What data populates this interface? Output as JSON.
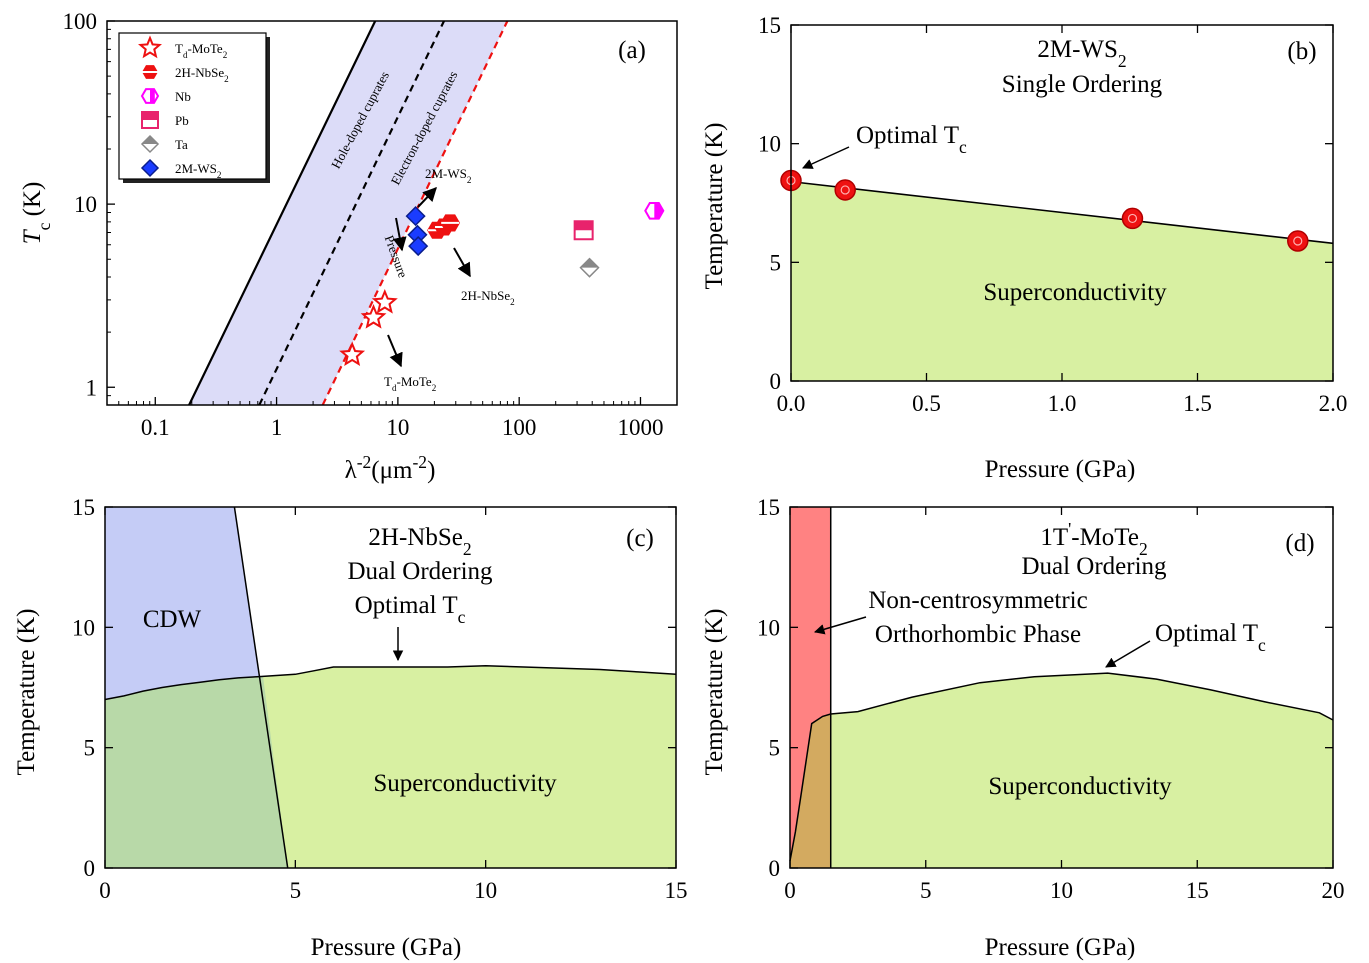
{
  "chart_data": [
    {
      "panel": "(a)",
      "type": "scatter",
      "xlabel": "λ⁻²(μm⁻²)",
      "ylabel": "Tc (K)",
      "xscale": "log",
      "yscale": "log",
      "xlim": [
        0.04,
        2000
      ],
      "ylim": [
        0.8,
        100
      ],
      "xticks": [
        "0.1",
        "1",
        "10",
        "100",
        "1000"
      ],
      "yticks": [
        "1",
        "10",
        "100"
      ],
      "legend_position": "top-left",
      "series": [
        {
          "name": "Td-MoTe2",
          "label_main": "T",
          "label_sub": "d",
          "label_rest": "-MoTe",
          "label_sub2": "2",
          "marker": "star",
          "color": "#ee1111",
          "points": [
            [
              4.2,
              1.5
            ],
            [
              6.3,
              2.4
            ],
            [
              7.8,
              2.9
            ]
          ]
        },
        {
          "name": "2H-NbSe2",
          "label_main": "2H-NbSe",
          "label_sub": "2",
          "marker": "hexagon",
          "color": "#ee1111",
          "points": [
            [
              21,
              7.2
            ],
            [
              24,
              7.5
            ],
            [
              27,
              7.9
            ]
          ]
        },
        {
          "name": "Nb",
          "label_main": "Nb",
          "marker": "hexagon-half",
          "color": "#ff00ff",
          "points": [
            [
              1300,
              9.2
            ]
          ]
        },
        {
          "name": "Pb",
          "label_main": "Pb",
          "marker": "square-half",
          "color": "#e8236c",
          "points": [
            [
              340,
              7.2
            ]
          ]
        },
        {
          "name": "Ta",
          "label_main": "Ta",
          "marker": "diamond-half",
          "color": "#888888",
          "points": [
            [
              380,
              4.5
            ]
          ]
        },
        {
          "name": "2M-WS2",
          "label_main": "2M-WS",
          "label_sub": "2",
          "marker": "diamond",
          "color": "#1a3cff",
          "points": [
            [
              14,
              8.6
            ],
            [
              14.5,
              6.8
            ],
            [
              14.7,
              5.9
            ]
          ]
        }
      ],
      "lines": [
        {
          "name": "Hole-doped cuprates",
          "style": "solid",
          "color": "#000000",
          "points": [
            [
              0.19,
              0.8
            ],
            [
              6.5,
              100
            ]
          ]
        },
        {
          "name": "Electron-doped cuprates",
          "style": "dashed",
          "color": "#000000",
          "points": [
            [
              0.72,
              0.8
            ],
            [
              24,
              100
            ]
          ]
        },
        {
          "name": "",
          "style": "dashed",
          "color": "#ee1111",
          "points": [
            [
              2.4,
              0.8
            ],
            [
              80,
              100
            ]
          ]
        }
      ],
      "band_fill": "#dcdcf8",
      "annotations": {
        "panel_label": "(a)",
        "hole": "Hole-doped cuprates",
        "electron": "Electron-doped cuprates",
        "pressure": "Pressure",
        "ws2_main": "2M-WS",
        "ws2_sub": "2",
        "nbse2_main": "2H-NbSe",
        "nbse2_sub": "2",
        "mote2_main": "T",
        "mote2_sub": "d",
        "mote2_rest": "-MoTe",
        "mote2_sub2": "2"
      }
    },
    {
      "panel": "(b)",
      "type": "area",
      "xlabel": "Pressure (GPa)",
      "ylabel": "Temperature (K)",
      "xlim": [
        0,
        2.0
      ],
      "ylim": [
        0,
        15
      ],
      "xticks": [
        "0.0",
        "0.5",
        "1.0",
        "1.5",
        "2.0"
      ],
      "yticks": [
        "0",
        "5",
        "10",
        "15"
      ],
      "x": [
        0.0,
        2.0
      ],
      "y": [
        8.4,
        5.8
      ],
      "points": [
        [
          0.0,
          8.45
        ],
        [
          0.2,
          8.05
        ],
        [
          1.26,
          6.85
        ],
        [
          1.87,
          5.9
        ]
      ],
      "region_labels": [
        "Superconductivity"
      ],
      "colors": {
        "superconductivity": "#d8f0a2",
        "points": "#ee1111"
      },
      "annotations": {
        "panel_label": "(b)",
        "title_main": "2M-WS",
        "title_sub": "2",
        "subtitle": "Single Ordering",
        "optimal_main": "Optimal T",
        "optimal_sub": "c"
      }
    },
    {
      "panel": "(c)",
      "type": "area",
      "xlabel": "Pressure (GPa)",
      "ylabel": "Temperature (K)",
      "xlim": [
        0,
        15
      ],
      "ylim": [
        0,
        15
      ],
      "xticks": [
        "0",
        "5",
        "10",
        "15"
      ],
      "yticks": [
        "0",
        "5",
        "10",
        "15"
      ],
      "series": [
        {
          "name": "Superconductivity",
          "x": [
            0,
            0.5,
            1,
            1.5,
            2,
            2.5,
            3,
            3.5,
            4,
            4.5,
            5,
            5.5,
            6,
            7,
            8,
            9,
            10,
            11,
            12,
            13,
            14,
            15
          ],
          "values": [
            7.0,
            7.15,
            7.35,
            7.5,
            7.62,
            7.72,
            7.82,
            7.9,
            7.95,
            8.0,
            8.05,
            8.2,
            8.35,
            8.35,
            8.35,
            8.35,
            8.4,
            8.35,
            8.3,
            8.25,
            8.15,
            8.05
          ]
        },
        {
          "name": "CDW",
          "x": [
            3.4,
            4.8
          ],
          "values": [
            15,
            0
          ]
        }
      ],
      "region_labels": [
        "CDW",
        "Superconductivity"
      ],
      "colors": {
        "cdw": "#c5ccf6",
        "superconductivity": "#d8f0a2",
        "overlap": "#b8d9a8"
      },
      "annotations": {
        "panel_label": "(c)",
        "title_main": "2H-NbSe",
        "title_sub": "2",
        "subtitle": "Dual Ordering",
        "optimal_main": "Optimal T",
        "optimal_sub": "c"
      }
    },
    {
      "panel": "(d)",
      "type": "area",
      "xlabel": "Pressure (GPa)",
      "ylabel": "Temperature (K)",
      "xlim": [
        0,
        20
      ],
      "ylim": [
        0,
        15
      ],
      "xticks": [
        "0",
        "5",
        "10",
        "15",
        "20"
      ],
      "yticks": [
        "0",
        "5",
        "10",
        "15"
      ],
      "series": [
        {
          "name": "Superconductivity",
          "x": [
            0,
            0.2,
            0.4,
            0.6,
            0.8,
            1.2,
            1.5,
            2.5,
            4.5,
            7,
            9,
            11.7,
            13.5,
            15.5,
            17.5,
            19.5,
            20
          ],
          "values": [
            0.3,
            1.5,
            3,
            4.5,
            6.0,
            6.3,
            6.4,
            6.5,
            7.1,
            7.7,
            7.95,
            8.1,
            7.85,
            7.4,
            6.9,
            6.45,
            6.15
          ]
        },
        {
          "name": "Non-centrosymmetric Orthorhombic Phase",
          "x": [
            0,
            1.5
          ],
          "values": [
            15,
            15
          ]
        }
      ],
      "region_labels": [
        "Superconductivity",
        "Non-centrosymmetric",
        "Orthorhombic Phase"
      ],
      "colors": {
        "orthorhombic": "#ff8282",
        "superconductivity": "#d8f0a2",
        "overlap": "#d3aa60"
      },
      "annotations": {
        "panel_label": "(d)",
        "title_main": "1T",
        "title_sup": "'",
        "title_rest": "-MoTe",
        "title_sub": "2",
        "subtitle": "Dual Ordering",
        "ortho1": "Non-centrosymmetric",
        "ortho2": "Orthorhombic Phase",
        "optimal_main": "Optimal T",
        "optimal_sub": "c"
      }
    }
  ]
}
